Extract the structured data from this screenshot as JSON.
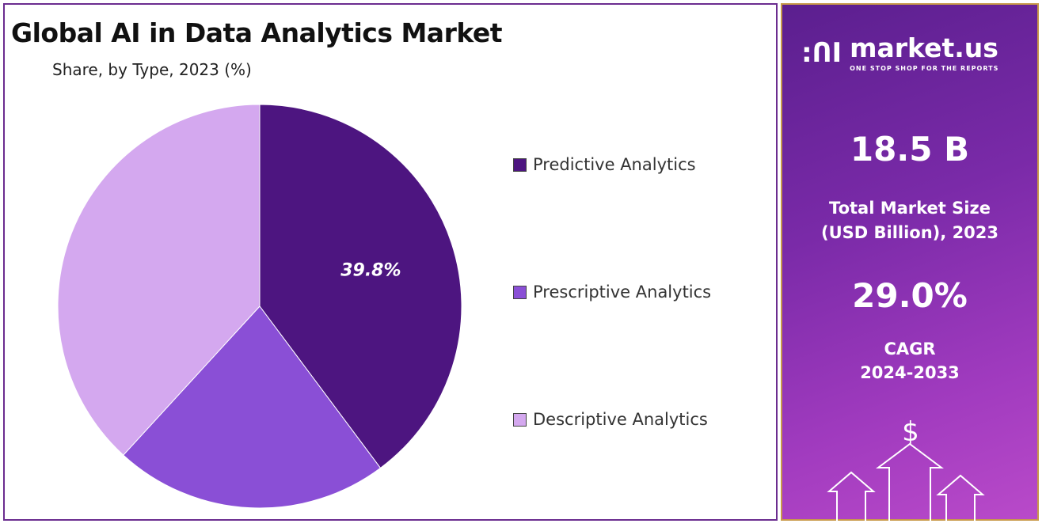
{
  "chart_data": {
    "type": "pie",
    "title": "Global AI in Data Analytics Market",
    "subtitle": "Share, by Type, 2023 (%)",
    "categories": [
      "Predictive Analytics",
      "Prescriptive Analytics",
      "Descriptive Analytics"
    ],
    "values": [
      39.8,
      22.0,
      38.2
    ],
    "data_labels": [
      "39.8%",
      "",
      ""
    ],
    "colors": [
      "#4d1580",
      "#8a4fd6",
      "#d4a8ef"
    ],
    "legend_position": "right"
  },
  "panel": {
    "brand": "market.us",
    "tagline": "ONE STOP SHOP FOR THE REPORTS",
    "market_size": "18.5 B",
    "market_size_label_1": "Total Market Size",
    "market_size_label_2": "(USD Billion), 2023",
    "cagr": "29.0%",
    "cagr_label_1": "CAGR",
    "cagr_label_2": "2024-2033",
    "icon": "dollar-arrows-icon"
  }
}
